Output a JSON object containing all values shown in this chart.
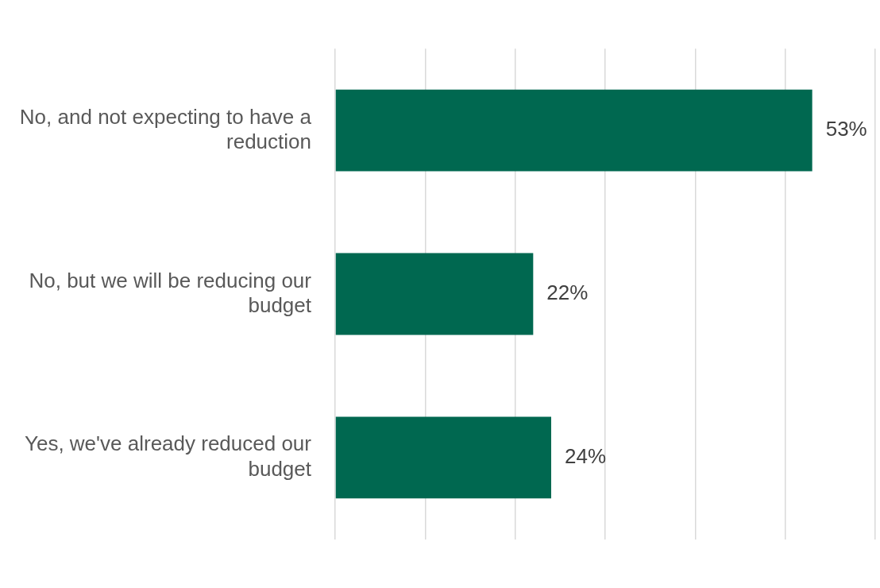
{
  "chart_data": {
    "type": "bar",
    "orientation": "horizontal",
    "categories": [
      "No, and not expecting to have a reduction",
      "No, but we will be reducing our budget",
      "Yes, we've already reduced our budget"
    ],
    "values": [
      53,
      22,
      24
    ],
    "color": "#006850",
    "value_labels": [
      "53%",
      "22%",
      "24%"
    ],
    "xlim": [
      0,
      60
    ],
    "xticks": [
      {
        "value": 0,
        "label": null
      },
      {
        "value": 10,
        "label": null
      },
      {
        "value": 20,
        "label": null
      },
      {
        "value": 30,
        "label": null
      },
      {
        "value": 40,
        "label": null
      },
      {
        "value": 50,
        "label": null
      },
      {
        "value": 60,
        "label": null
      }
    ],
    "tick_labels": "y",
    "grid": "x",
    "legend": false
  }
}
